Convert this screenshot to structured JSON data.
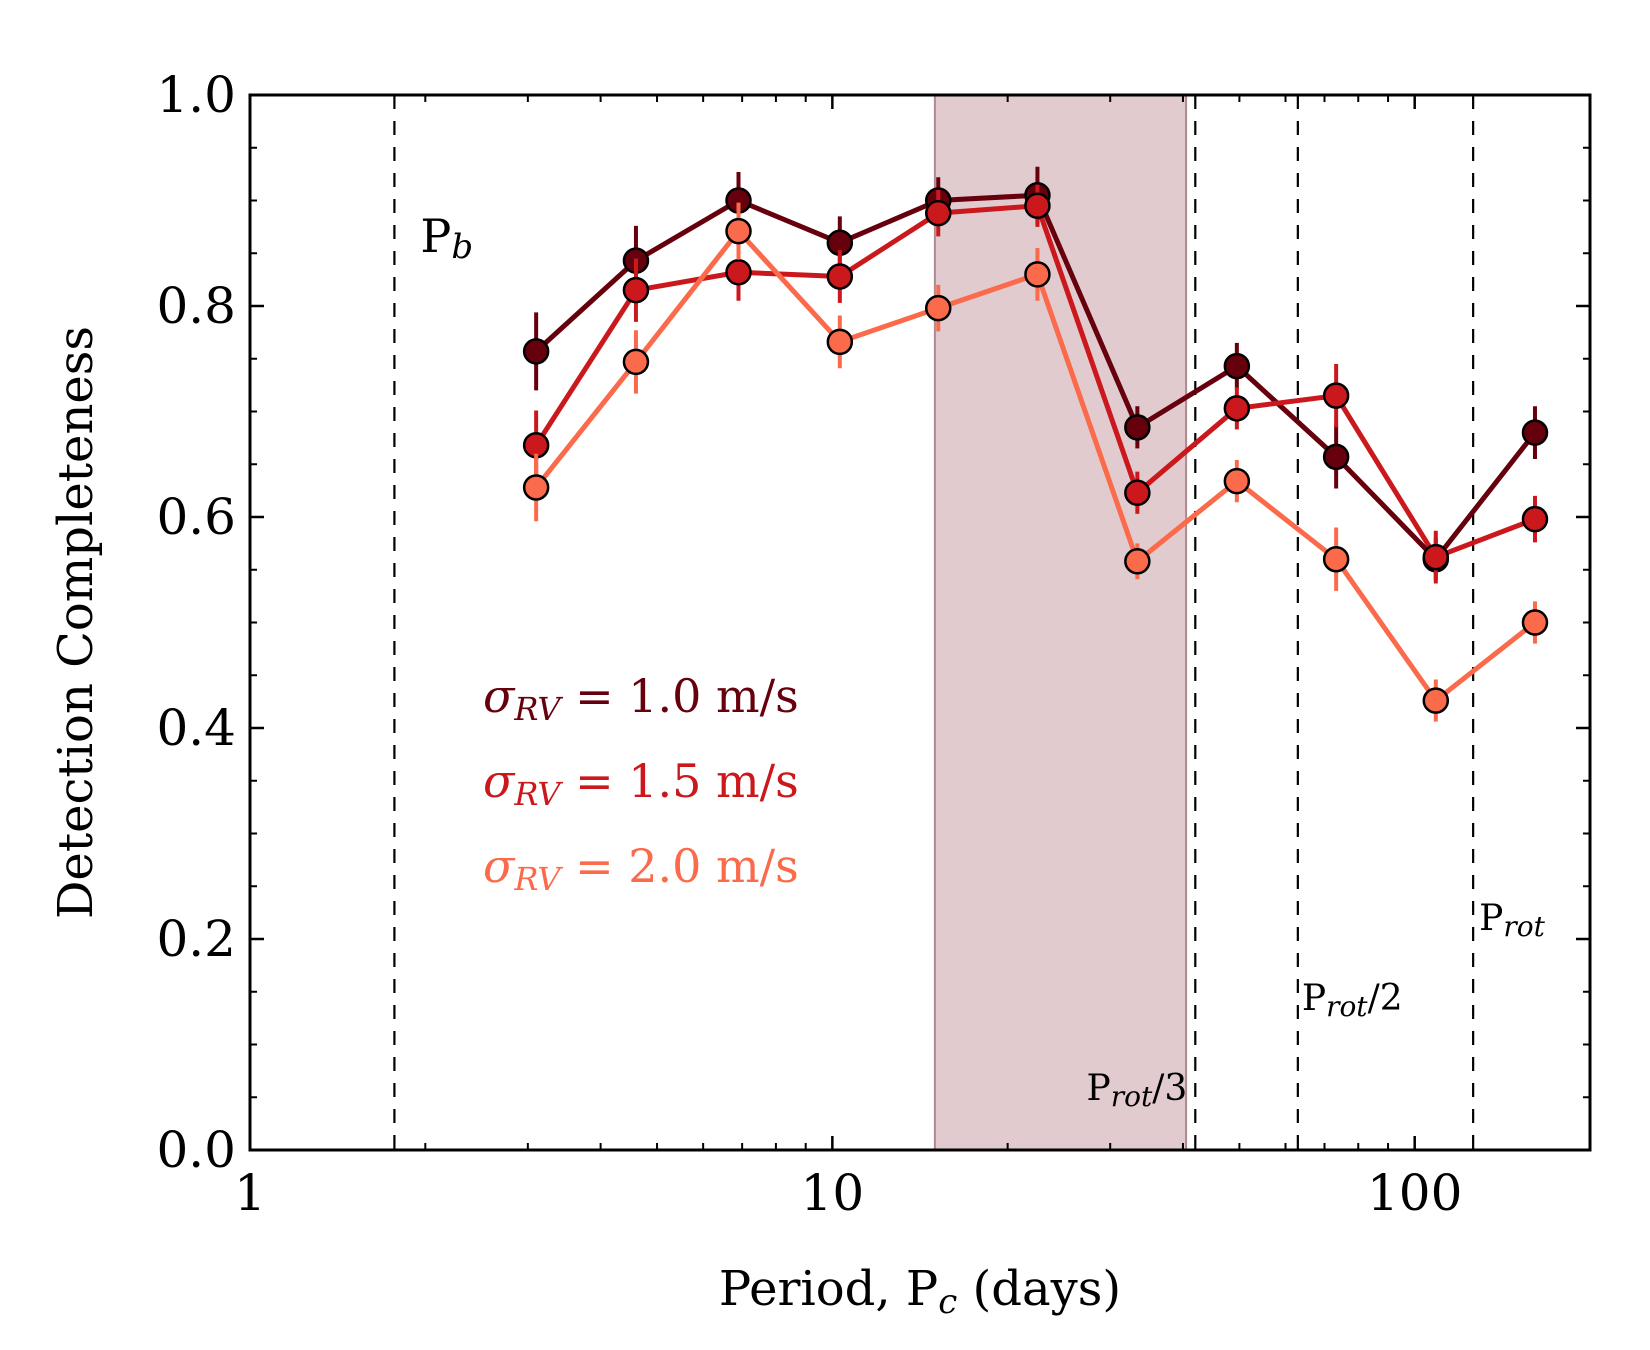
{
  "chart_data": {
    "type": "line",
    "title": "",
    "xlabel": {
      "prefix": "Period, P",
      "sub": "c",
      "suffix": " (days)"
    },
    "ylabel": "Detection Completeness",
    "xscale": "log",
    "xlim": [
      1,
      200
    ],
    "ylim": [
      0.0,
      1.0
    ],
    "xticks": [
      {
        "value": 1,
        "label": "1"
      },
      {
        "value": 10,
        "label": "10"
      },
      {
        "value": 100,
        "label": "100"
      }
    ],
    "yticks": [
      {
        "value": 0.0,
        "label": "0.0"
      },
      {
        "value": 0.2,
        "label": "0.2"
      },
      {
        "value": 0.4,
        "label": "0.4"
      },
      {
        "value": 0.6,
        "label": "0.6"
      },
      {
        "value": 0.8,
        "label": "0.8"
      },
      {
        "value": 1.0,
        "label": "1.0"
      }
    ],
    "x": [
      3.1,
      4.6,
      6.9,
      10.3,
      15.2,
      22.5,
      33.4,
      49.5,
      73.3,
      108.7,
      160.9
    ],
    "series": [
      {
        "name": "σ_RV = 1.0 m/s",
        "legend": {
          "symbol": "σ",
          "sub": "RV",
          "text": " = 1.0 m/s"
        },
        "color": "#67000d",
        "values": [
          0.757,
          0.843,
          0.9,
          0.86,
          0.9,
          0.905,
          0.685,
          0.743,
          0.657,
          0.56,
          0.68
        ],
        "errors": [
          0.037,
          0.033,
          0.027,
          0.025,
          0.022,
          0.027,
          0.02,
          0.022,
          0.03,
          0.02,
          0.025
        ]
      },
      {
        "name": "σ_RV = 1.5 m/s",
        "legend": {
          "symbol": "σ",
          "sub": "RV",
          "text": " = 1.5 m/s"
        },
        "color": "#cb181d",
        "values": [
          0.668,
          0.815,
          0.832,
          0.828,
          0.888,
          0.895,
          0.623,
          0.703,
          0.715,
          0.562,
          0.598
        ],
        "errors": [
          0.033,
          0.03,
          0.027,
          0.025,
          0.022,
          0.02,
          0.02,
          0.02,
          0.03,
          0.025,
          0.022
        ]
      },
      {
        "name": "σ_RV = 2.0 m/s",
        "legend": {
          "symbol": "σ",
          "sub": "RV",
          "text": " = 2.0 m/s"
        },
        "color": "#fb6a4a",
        "values": [
          0.628,
          0.747,
          0.871,
          0.766,
          0.798,
          0.83,
          0.558,
          0.634,
          0.56,
          0.426,
          0.5
        ],
        "errors": [
          0.032,
          0.03,
          0.027,
          0.025,
          0.022,
          0.025,
          0.017,
          0.02,
          0.03,
          0.02,
          0.02
        ]
      }
    ],
    "shaded_region": {
      "x_range": [
        15.0,
        40.5
      ],
      "color": "#c9a0a8"
    },
    "reference_lines": [
      {
        "x": 1.77,
        "label": {
          "main": "P",
          "sub": "b",
          "suffix": ""
        }
      },
      {
        "x": 42.0,
        "label": {
          "main": "P",
          "sub": "rot",
          "suffix": "/3"
        }
      },
      {
        "x": 63.0,
        "label": {
          "main": "P",
          "sub": "rot",
          "suffix": "/2"
        }
      },
      {
        "x": 126.0,
        "label": {
          "main": "P",
          "sub": "rot",
          "suffix": ""
        }
      }
    ],
    "legend_position": "center-left"
  }
}
